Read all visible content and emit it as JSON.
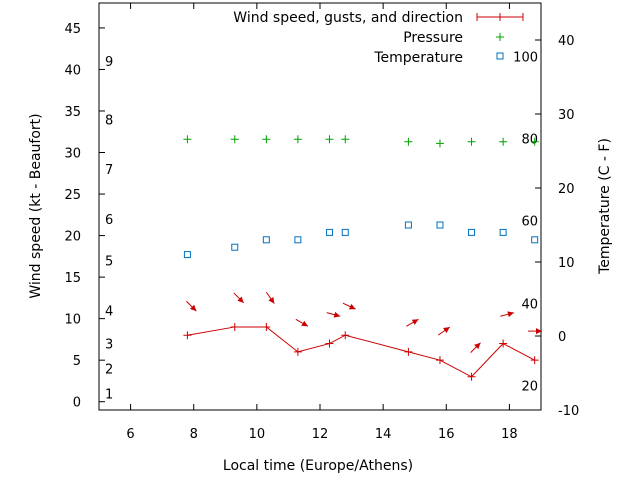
{
  "chart_data": {
    "type": "line",
    "xlabel": "Local time (Europe/Athens)",
    "ylabel": "Wind speed (kt - Beaufort)",
    "y2label": "Temperature (C - F)",
    "xlim": [
      5,
      19
    ],
    "ylim": [
      -1,
      48
    ],
    "y2lim": [
      -10,
      45
    ],
    "x_ticks": [
      6,
      8,
      10,
      12,
      14,
      16,
      18
    ],
    "y_ticks": [
      0,
      5,
      10,
      15,
      20,
      25,
      30,
      35,
      40,
      45
    ],
    "y2_ticks": [
      -10,
      0,
      10,
      20,
      30,
      40
    ],
    "beaufort_labels": [
      {
        "label": "1",
        "y": 1
      },
      {
        "label": "2",
        "y": 4
      },
      {
        "label": "3",
        "y": 7
      },
      {
        "label": "4",
        "y": 11
      },
      {
        "label": "5",
        "y": 17
      },
      {
        "label": "6",
        "y": 22
      },
      {
        "label": "7",
        "y": 28
      },
      {
        "label": "8",
        "y": 34
      },
      {
        "label": "9",
        "y": 41
      }
    ],
    "fahrenheit_labels": [
      {
        "label": "20",
        "c": -6.7
      },
      {
        "label": "40",
        "c": 4.4
      },
      {
        "label": "60",
        "c": 15.6
      },
      {
        "label": "80",
        "c": 26.7
      },
      {
        "label": "100",
        "c": 37.8
      }
    ],
    "legend": {
      "placement": "top-right",
      "entries": [
        "Wind speed, gusts, and direction",
        "Pressure",
        "Temperature"
      ]
    },
    "series": [
      {
        "name": "Wind speed, gusts, and direction",
        "color": "#cc0000",
        "x": [
          7.8,
          9.3,
          10.3,
          11.3,
          12.3,
          12.8,
          14.8,
          15.8,
          16.8,
          17.8,
          18.8
        ],
        "values": [
          8,
          9,
          9,
          6,
          7,
          8,
          6,
          5,
          3,
          7,
          5
        ],
        "direction_deg": [
          135,
          135,
          145,
          120,
          105,
          115,
          60,
          55,
          45,
          75,
          90
        ]
      },
      {
        "name": "Pressure",
        "color": "#00a000",
        "x": [
          7.8,
          9.3,
          10.3,
          11.3,
          12.3,
          12.8,
          14.8,
          15.8,
          16.8,
          17.8,
          18.8
        ],
        "values": [
          31.6,
          31.6,
          31.6,
          31.6,
          31.6,
          31.6,
          31.3,
          31.1,
          31.3,
          31.3,
          31.3
        ]
      },
      {
        "name": "Temperature",
        "color": "#0070c0",
        "x": [
          7.8,
          9.3,
          10.3,
          11.3,
          12.3,
          12.8,
          14.8,
          15.8,
          16.8,
          17.8,
          18.8
        ],
        "values": [
          11,
          12,
          13,
          13,
          14,
          14,
          15,
          15,
          14,
          14,
          13
        ]
      }
    ]
  }
}
